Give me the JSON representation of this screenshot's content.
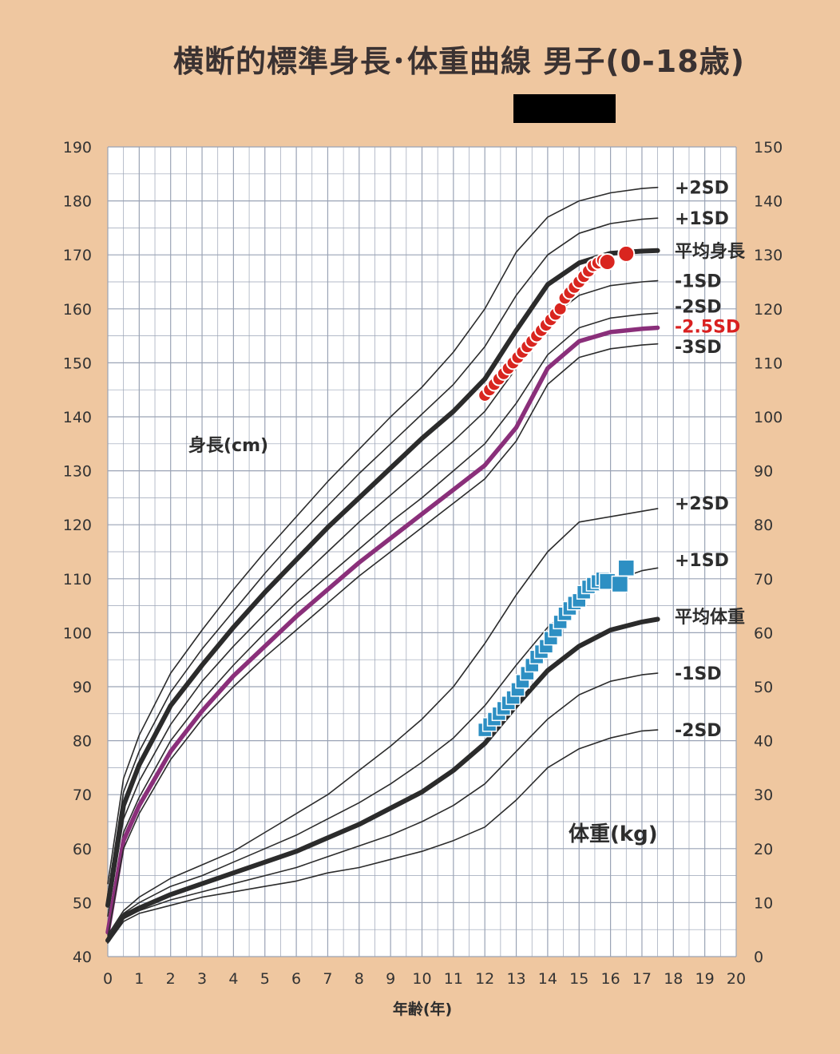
{
  "header": {
    "title": "横断的標準身長･体重曲線 男子(0-18歳)"
  },
  "labels": {
    "height_axis": "身長(cm)",
    "weight_axis": "体重(kg)",
    "x_axis": "年齢(年)"
  },
  "colors": {
    "background": "#efc7a0",
    "plot_bg": "#ffffff",
    "grid": "#9aa3b5",
    "curve": "#2b2b2b",
    "target_curve": "#8a2f7a",
    "height_points": "#d9251f",
    "weight_points": "#2d8fc3",
    "highlight_label": "#d92020",
    "redaction": "#000000"
  },
  "chart_data": {
    "type": "line",
    "x_ticks": [
      "0",
      "1",
      "2",
      "3",
      "4",
      "5",
      "6",
      "7",
      "8",
      "9",
      "10",
      "11",
      "12",
      "13",
      "14",
      "15",
      "16",
      "17",
      "18",
      "19",
      "20"
    ],
    "xlim": [
      0,
      20
    ],
    "y_left_ticks": [
      "40",
      "50",
      "60",
      "70",
      "80",
      "90",
      "100",
      "110",
      "120",
      "130",
      "140",
      "150",
      "160",
      "170",
      "180",
      "190"
    ],
    "ylim_left": [
      40,
      190
    ],
    "y_right_ticks": [
      "0",
      "10",
      "20",
      "30",
      "40",
      "50",
      "60",
      "70",
      "80",
      "90",
      "100",
      "110",
      "120",
      "130",
      "140",
      "150"
    ],
    "ylim_right": [
      0,
      150
    ],
    "grid": true,
    "height_series": [
      {
        "name": "+2SD",
        "label": "+2SD",
        "style": "thin",
        "x": [
          0,
          0.5,
          1,
          2,
          3,
          4,
          5,
          6,
          7,
          8,
          9,
          10,
          11,
          12,
          13,
          14,
          15,
          16,
          17,
          17.5
        ],
        "y": [
          53.5,
          73,
          81,
          92.5,
          100.5,
          108,
          115,
          121.5,
          128,
          134,
          140,
          145.5,
          152,
          160,
          170.5,
          177,
          180,
          181.5,
          182.3,
          182.5
        ]
      },
      {
        "name": "+1SD",
        "label": "+1SD",
        "style": "thin",
        "x": [
          0,
          0.5,
          1,
          2,
          3,
          4,
          5,
          6,
          7,
          8,
          9,
          10,
          11,
          12,
          13,
          14,
          15,
          16,
          17,
          17.5
        ],
        "y": [
          51.5,
          70.5,
          78,
          89,
          97,
          104,
          111,
          117.5,
          123.5,
          129.5,
          135,
          140.5,
          146,
          153,
          162.5,
          170,
          174,
          175.8,
          176.6,
          176.8
        ]
      },
      {
        "name": "平均身長",
        "label": "平均身長",
        "style": "bold",
        "x": [
          0,
          0.5,
          1,
          2,
          3,
          4,
          5,
          6,
          7,
          8,
          9,
          10,
          11,
          12,
          13,
          14,
          15,
          16,
          17,
          17.5
        ],
        "y": [
          49.5,
          68,
          75.5,
          86.5,
          94,
          101,
          107.5,
          113.5,
          119.5,
          125,
          130.5,
          136,
          141,
          147,
          156,
          164.5,
          168.5,
          170.3,
          170.7,
          170.8
        ]
      },
      {
        "name": "-1SD",
        "label": "-1SD",
        "style": "thin",
        "x": [
          0,
          0.5,
          1,
          2,
          3,
          4,
          5,
          6,
          7,
          8,
          9,
          10,
          11,
          12,
          13,
          14,
          15,
          16,
          17,
          17.5
        ],
        "y": [
          47.5,
          65.5,
          72.5,
          83,
          91,
          97.5,
          103.5,
          109.5,
          115,
          120.5,
          125.5,
          130.5,
          135.5,
          141,
          149,
          158,
          162.5,
          164.3,
          165,
          165.2
        ]
      },
      {
        "name": "-2SD",
        "label": "-2SD",
        "style": "thin",
        "x": [
          0,
          0.5,
          1,
          2,
          3,
          4,
          5,
          6,
          7,
          8,
          9,
          10,
          11,
          12,
          13,
          14,
          15,
          16,
          17,
          17.5
        ],
        "y": [
          45.5,
          63,
          69.5,
          80,
          87.5,
          94,
          100,
          105.5,
          110.5,
          115.5,
          120.5,
          125,
          130,
          135,
          142.5,
          151.5,
          156.5,
          158.3,
          159,
          159.2
        ]
      },
      {
        "name": "-2.5SD",
        "label": "-2.5SD",
        "style": "target",
        "x": [
          0,
          0.5,
          1,
          2,
          3,
          4,
          5,
          6,
          7,
          8,
          9,
          10,
          11,
          12,
          13,
          14,
          15,
          16,
          17,
          17.5
        ],
        "y": [
          44.5,
          61.5,
          68,
          78,
          85.5,
          92,
          97.5,
          103,
          108,
          113,
          117.5,
          122,
          126.5,
          131,
          138,
          149,
          154,
          155.7,
          156.3,
          156.5
        ]
      },
      {
        "name": "-3SD",
        "label": "-3SD",
        "style": "thin",
        "x": [
          0,
          0.5,
          1,
          2,
          3,
          4,
          5,
          6,
          7,
          8,
          9,
          10,
          11,
          12,
          13,
          14,
          15,
          16,
          17,
          17.5
        ],
        "y": [
          43.5,
          60,
          66.5,
          76.5,
          84,
          90,
          95.5,
          100.5,
          105.5,
          110.5,
          115,
          119.5,
          124,
          128.5,
          135.5,
          146,
          151,
          152.6,
          153.3,
          153.5
        ]
      }
    ],
    "weight_series": [
      {
        "name": "+2SD",
        "label": "+2SD",
        "style": "thin",
        "x": [
          0,
          0.5,
          1,
          2,
          3,
          4,
          5,
          6,
          7,
          8,
          9,
          10,
          11,
          12,
          13,
          14,
          15,
          16,
          17,
          17.5
        ],
        "y": [
          4,
          8.5,
          11,
          14.5,
          17,
          19.5,
          23,
          26.5,
          30,
          34.5,
          39,
          44,
          50,
          58,
          67,
          75,
          80.5,
          81.5,
          82.5,
          83
        ]
      },
      {
        "name": "+1SD",
        "label": "+1SD",
        "style": "thin",
        "x": [
          0,
          0.5,
          1,
          2,
          3,
          4,
          5,
          6,
          7,
          8,
          9,
          10,
          11,
          12,
          13,
          14,
          15,
          16,
          17,
          17.5
        ],
        "y": [
          3.5,
          8,
          10,
          13,
          15,
          17.5,
          20,
          22.5,
          25.5,
          28.5,
          32,
          36,
          40.5,
          46.5,
          54,
          61,
          66,
          69.5,
          71.5,
          72
        ]
      },
      {
        "name": "平均体重",
        "label": "平均体重",
        "style": "bold",
        "x": [
          0,
          0.5,
          1,
          2,
          3,
          4,
          5,
          6,
          7,
          8,
          9,
          10,
          11,
          12,
          13,
          14,
          15,
          16,
          17,
          17.5
        ],
        "y": [
          3,
          7.5,
          9,
          11.5,
          13.5,
          15.5,
          17.5,
          19.5,
          22,
          24.5,
          27.5,
          30.5,
          34.5,
          39.5,
          46.5,
          53,
          57.5,
          60.5,
          62,
          62.5
        ]
      },
      {
        "name": "-1SD",
        "label": "-1SD",
        "style": "thin",
        "x": [
          0,
          0.5,
          1,
          2,
          3,
          4,
          5,
          6,
          7,
          8,
          9,
          10,
          11,
          12,
          13,
          14,
          15,
          16,
          17,
          17.5
        ],
        "y": [
          2.8,
          7,
          8.5,
          10.5,
          12,
          13.5,
          15,
          16.5,
          18.5,
          20.5,
          22.5,
          25,
          28,
          32,
          38,
          44,
          48.5,
          51,
          52.2,
          52.5
        ]
      },
      {
        "name": "-2SD",
        "label": "-2SD",
        "style": "thin",
        "x": [
          0,
          0.5,
          1,
          2,
          3,
          4,
          5,
          6,
          7,
          8,
          9,
          10,
          11,
          12,
          13,
          14,
          15,
          16,
          17,
          17.5
        ],
        "y": [
          2.5,
          6.5,
          8,
          9.5,
          11,
          12,
          13,
          14,
          15.5,
          16.5,
          18,
          19.5,
          21.5,
          24,
          29,
          35,
          38.5,
          40.5,
          41.8,
          42
        ]
      }
    ],
    "height_points": {
      "x": [
        12.0,
        12.15,
        12.3,
        12.45,
        12.6,
        12.75,
        12.9,
        13.05,
        13.2,
        13.35,
        13.5,
        13.65,
        13.8,
        13.95,
        14.1,
        14.25,
        14.4,
        14.55,
        14.7,
        14.85,
        15.0,
        15.15,
        15.3,
        15.45,
        15.6,
        15.75,
        15.9,
        16.5
      ],
      "y": [
        144,
        145,
        146,
        147,
        148,
        149,
        150,
        151,
        152,
        153,
        154,
        155,
        156,
        157,
        158,
        159,
        160,
        162,
        163,
        164,
        165,
        166,
        167,
        168,
        168.5,
        169,
        168.7,
        170.2
      ]
    },
    "weight_points": {
      "x": [
        12.0,
        12.15,
        12.3,
        12.45,
        12.6,
        12.75,
        12.9,
        13.05,
        13.2,
        13.35,
        13.5,
        13.65,
        13.8,
        13.95,
        14.1,
        14.25,
        14.4,
        14.55,
        14.7,
        14.85,
        15.0,
        15.15,
        15.3,
        15.45,
        15.6,
        15.75,
        15.9,
        16.3,
        16.5
      ],
      "y": [
        42,
        43,
        44,
        45,
        46,
        47,
        48,
        49.5,
        51,
        52.5,
        54,
        55.5,
        56.5,
        57.5,
        59,
        60.5,
        62,
        63.5,
        64.5,
        65.5,
        66,
        67.5,
        68.5,
        69,
        69.5,
        70,
        69.5,
        69,
        72
      ]
    },
    "height_labels": [
      {
        "text": "+2SD",
        "y": 182.5
      },
      {
        "text": "+1SD",
        "y": 176.8
      },
      {
        "text": "平均身長",
        "y": 170.8
      },
      {
        "text": "-1SD",
        "y": 165.2
      },
      {
        "text": "-2SD",
        "y": 160.5
      },
      {
        "text": "-2.5SD",
        "y": 156.8,
        "highlight": true
      },
      {
        "text": "-3SD",
        "y": 153
      }
    ],
    "weight_labels": [
      {
        "text": "+2SD",
        "y": 84
      },
      {
        "text": "+1SD",
        "y": 73.5
      },
      {
        "text": "平均体重",
        "y": 63
      },
      {
        "text": "-1SD",
        "y": 52.5
      },
      {
        "text": "-2SD",
        "y": 42
      }
    ]
  }
}
